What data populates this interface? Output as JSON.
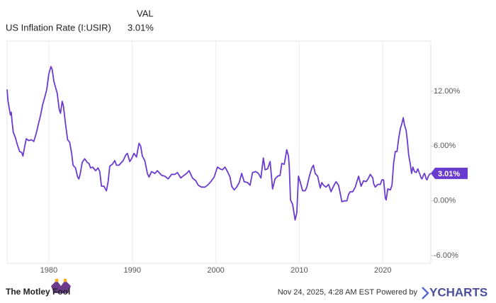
{
  "chart_data": {
    "type": "line",
    "legend_header": "VAL",
    "x": [
      1975.0,
      1975.1,
      1975.25,
      1975.4,
      1975.5,
      1975.6,
      1975.75,
      1976.0,
      1976.25,
      1976.5,
      1976.75,
      1976.9,
      1977.1,
      1977.3,
      1977.6,
      1977.9,
      1978.2,
      1978.5,
      1978.8,
      1979.0,
      1979.25,
      1979.5,
      1979.75,
      1980.0,
      1980.25,
      1980.4,
      1980.6,
      1980.75,
      1981.0,
      1981.25,
      1981.4,
      1981.6,
      1981.75,
      1982.0,
      1982.25,
      1982.5,
      1982.75,
      1982.9,
      1983.2,
      1983.45,
      1983.6,
      1983.75,
      1984.0,
      1984.3,
      1984.6,
      1984.8,
      1985.0,
      1985.25,
      1985.6,
      1985.9,
      1986.1,
      1986.3,
      1986.6,
      1986.9,
      1987.1,
      1987.3,
      1987.6,
      1987.9,
      1988.1,
      1988.4,
      1988.7,
      1988.9,
      1989.2,
      1989.4,
      1989.7,
      1989.9,
      1990.2,
      1990.5,
      1990.8,
      1991.0,
      1991.2,
      1991.5,
      1991.8,
      1992.0,
      1992.3,
      1992.7,
      1993.0,
      1993.5,
      1993.9,
      1994.3,
      1994.7,
      1995.1,
      1995.4,
      1995.8,
      1996.2,
      1996.5,
      1996.8,
      1997.2,
      1997.6,
      1997.9,
      1998.3,
      1998.7,
      1999.0,
      1999.4,
      1999.8,
      2000.2,
      2000.5,
      2000.8,
      2001.1,
      2001.4,
      2001.7,
      2001.9,
      2002.2,
      2002.5,
      2002.8,
      2003.1,
      2003.4,
      2003.8,
      2004.1,
      2004.4,
      2004.8,
      2005.1,
      2005.4,
      2005.7,
      2005.9,
      2006.2,
      2006.5,
      2006.8,
      2007.1,
      2007.4,
      2007.7,
      2007.9,
      2008.2,
      2008.5,
      2008.7,
      2008.8,
      2008.95,
      2009.2,
      2009.5,
      2009.7,
      2009.9,
      2010.1,
      2010.4,
      2010.7,
      2010.9,
      2011.2,
      2011.5,
      2011.7,
      2011.9,
      2012.2,
      2012.5,
      2012.7,
      2012.9,
      2013.2,
      2013.5,
      2013.8,
      2014.1,
      2014.4,
      2014.7,
      2014.9,
      2015.1,
      2015.4,
      2015.7,
      2015.9,
      2016.1,
      2016.4,
      2016.7,
      2016.9,
      2017.1,
      2017.4,
      2017.7,
      2018.0,
      2018.3,
      2018.5,
      2018.8,
      2018.9,
      2019.1,
      2019.4,
      2019.7,
      2019.9,
      2020.1,
      2020.3,
      2020.4,
      2020.6,
      2020.9,
      2021.1,
      2021.3,
      2021.5,
      2021.7,
      2021.9,
      2022.1,
      2022.3,
      2022.45,
      2022.6,
      2022.8,
      2022.95,
      2023.1,
      2023.3,
      2023.45,
      2023.6,
      2023.8,
      2024.0,
      2024.2,
      2024.4,
      2024.6,
      2024.7,
      2024.9,
      2025.0,
      2025.2,
      2025.3,
      2025.45,
      2025.6,
      2025.75
    ],
    "series": [
      {
        "name": "US Inflation Rate (I:USIR)",
        "color": "#6a3bcf",
        "values": [
          12.2,
          11.0,
          10.2,
          9.4,
          9.7,
          8.6,
          7.5,
          6.9,
          6.1,
          5.4,
          5.3,
          4.9,
          5.9,
          6.8,
          6.6,
          6.7,
          6.5,
          7.4,
          8.6,
          9.3,
          10.5,
          11.3,
          12.2,
          13.9,
          14.7,
          14.4,
          13.1,
          12.6,
          11.8,
          10.0,
          9.6,
          10.9,
          10.4,
          8.4,
          6.7,
          6.4,
          5.1,
          3.9,
          3.6,
          2.6,
          2.4,
          2.9,
          4.2,
          4.6,
          4.2,
          4.1,
          3.6,
          3.7,
          3.3,
          3.6,
          3.2,
          1.6,
          1.6,
          1.1,
          2.1,
          3.8,
          4.0,
          4.4,
          3.9,
          3.9,
          4.2,
          4.4,
          5.0,
          5.2,
          4.3,
          4.6,
          5.2,
          4.8,
          6.3,
          6.0,
          4.9,
          4.4,
          3.0,
          2.6,
          3.2,
          3.0,
          3.3,
          2.8,
          2.7,
          2.4,
          2.9,
          2.9,
          3.1,
          2.5,
          2.8,
          3.0,
          3.3,
          2.5,
          2.2,
          1.7,
          1.5,
          1.5,
          1.7,
          2.1,
          2.6,
          3.7,
          3.5,
          3.4,
          3.7,
          3.2,
          2.6,
          1.6,
          1.2,
          1.5,
          2.0,
          3.0,
          2.1,
          2.0,
          1.7,
          3.1,
          3.2,
          3.0,
          2.5,
          4.7,
          3.4,
          3.5,
          4.3,
          1.3,
          2.4,
          2.7,
          2.8,
          4.1,
          4.0,
          5.6,
          4.9,
          3.7,
          0.1,
          -0.4,
          -2.1,
          -1.3,
          2.7,
          2.1,
          1.1,
          1.1,
          1.5,
          2.7,
          3.6,
          3.9,
          3.0,
          2.7,
          1.4,
          2.0,
          1.7,
          1.5,
          1.8,
          1.0,
          1.6,
          2.1,
          1.7,
          0.8,
          -0.1,
          0.0,
          0.0,
          0.7,
          1.0,
          1.0,
          1.5,
          2.1,
          2.7,
          1.6,
          2.2,
          2.1,
          2.5,
          2.9,
          2.5,
          1.9,
          1.5,
          1.8,
          1.8,
          2.3,
          2.3,
          0.3,
          0.1,
          1.3,
          1.2,
          1.7,
          4.2,
          5.4,
          5.4,
          6.8,
          7.9,
          8.5,
          9.1,
          8.3,
          7.7,
          6.5,
          5.0,
          4.0,
          3.0,
          3.7,
          3.2,
          3.1,
          3.5,
          3.0,
          2.5,
          2.4,
          2.9,
          3.0,
          2.4,
          2.3,
          2.7,
          2.9,
          3.01
        ]
      }
    ],
    "current_value": 3.01,
    "current_value_label": "3.01%",
    "xlim": [
      1975,
      2025.75
    ],
    "xticks": [
      1980,
      1990,
      2000,
      2010,
      2020
    ],
    "ylim": [
      -6.85,
      17.5
    ],
    "yticks": [
      {
        "value": 12,
        "label": "12.00%"
      },
      {
        "value": 6,
        "label": "6.00%"
      },
      {
        "value": 0,
        "label": "0.00%"
      },
      {
        "value": -6,
        "label": "-6.00%"
      }
    ],
    "grid": "x"
  },
  "footer": {
    "brand": "The Motley Fool",
    "timestamp": "Nov 24, 2025, 4:28 AM EST Powered by",
    "provider": "YCHARTS"
  }
}
